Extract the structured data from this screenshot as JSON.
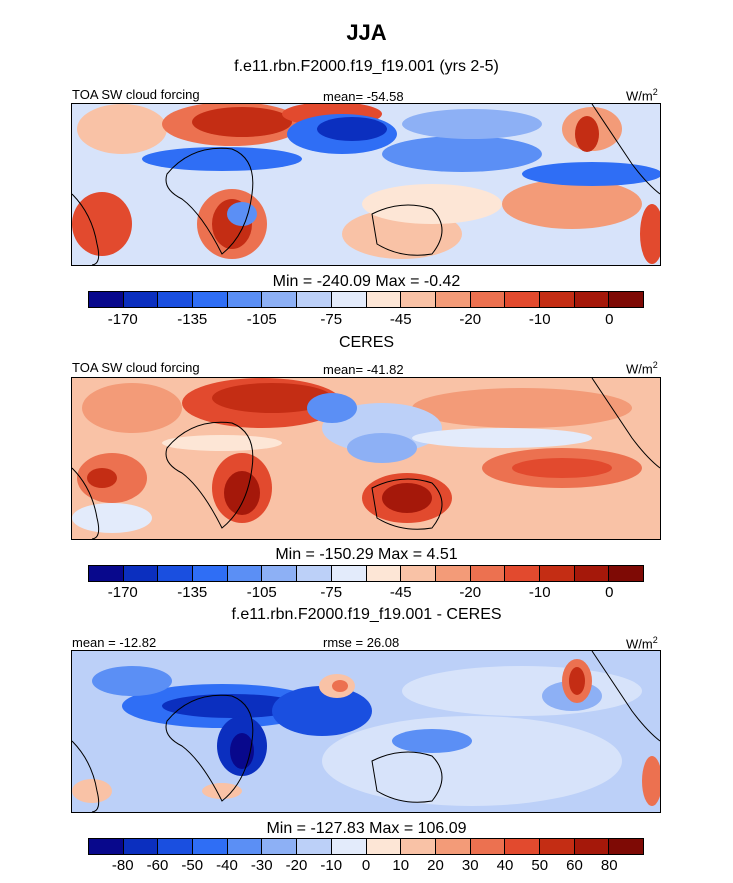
{
  "title": "JJA",
  "panels": [
    {
      "subtitle": "f.e11.rbn.F2000.f19_f19.001 (yrs 2-5)",
      "left_label": "TOA SW cloud forcing",
      "center_label": "mean= -54.58",
      "units_label": "W/m",
      "units_sup": "2",
      "minmax": "Min = -240.09 Max =  -0.42",
      "colorbar_ticks": [
        "-170",
        "-135",
        "-105",
        "-75",
        "-45",
        "-20",
        "-10",
        "0"
      ]
    },
    {
      "subtitle": "CERES",
      "left_label": "TOA SW cloud forcing",
      "center_label": "mean= -41.82",
      "units_label": "W/m",
      "units_sup": "2",
      "minmax": "Min = -150.29 Max =   4.51",
      "colorbar_ticks": [
        "-170",
        "-135",
        "-105",
        "-75",
        "-45",
        "-20",
        "-10",
        "0"
      ]
    },
    {
      "subtitle": "f.e11.rbn.F2000.f19_f19.001 - CERES",
      "left_label": "mean = -12.82",
      "center_label": "rmse =  26.08",
      "units_label": "W/m",
      "units_sup": "2",
      "minmax": "Min = -127.83 Max = 106.09",
      "colorbar_ticks": [
        "-80",
        "-60",
        "-50",
        "-40",
        "-30",
        "-20",
        "-10",
        "0",
        "10",
        "20",
        "30",
        "40",
        "50",
        "60",
        "80"
      ]
    }
  ],
  "palette": [
    "#08088c",
    "#0b2fbf",
    "#1a4fe0",
    "#2f6ef5",
    "#5b8ff5",
    "#8db0f5",
    "#bcd0f8",
    "#e3ebfb",
    "#fde6d6",
    "#f9c2a6",
    "#f39b78",
    "#ec7150",
    "#e24a2e",
    "#c42d14",
    "#a5180a",
    "#7e0a05"
  ]
}
